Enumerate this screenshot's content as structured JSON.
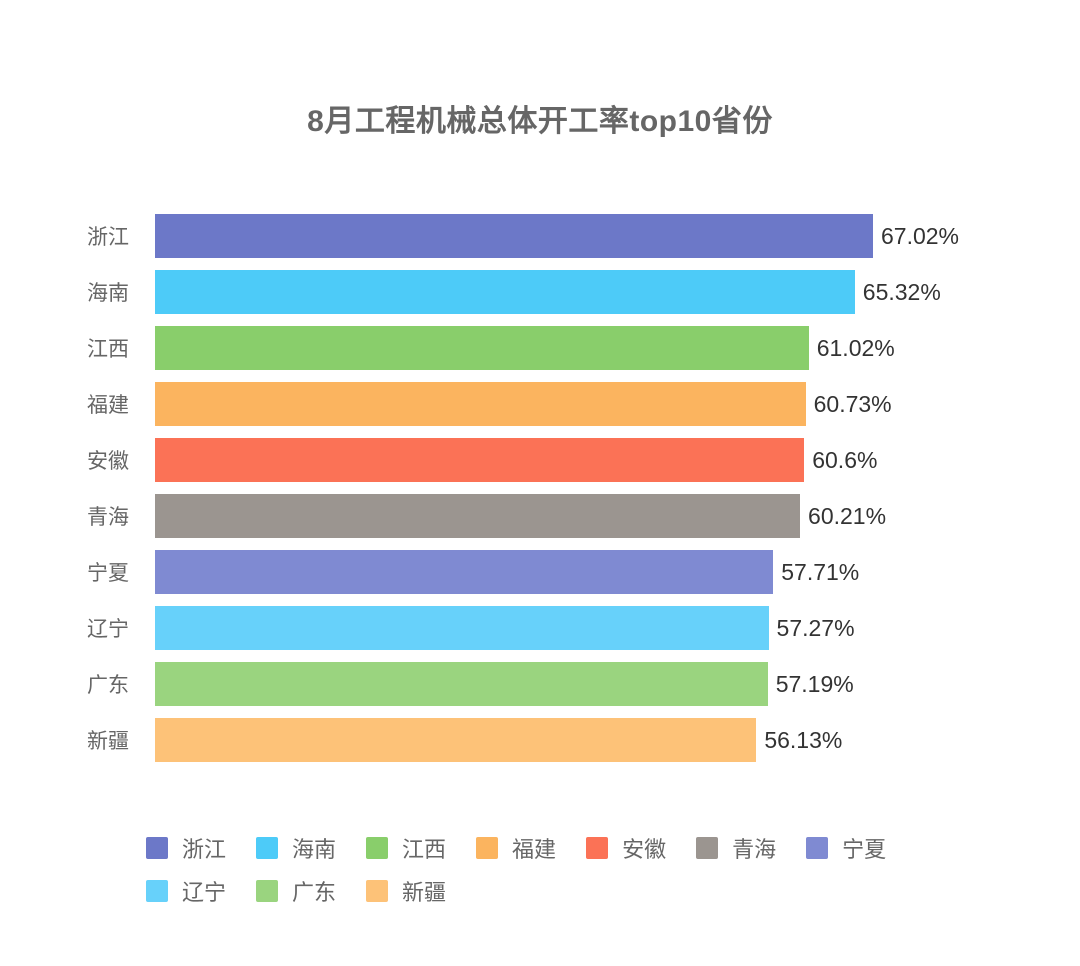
{
  "title": "8月工程机械总体开工率top10省份",
  "colors": {
    "background": "#ffffff",
    "title_text": "#666666",
    "category_text": "#666666",
    "value_text": "#333333"
  },
  "chart_data": {
    "type": "bar",
    "orientation": "horizontal",
    "title": "8月工程机械总体开工率top10省份",
    "xlabel": "",
    "ylabel": "",
    "xlim": [
      0,
      67.02
    ],
    "grid": false,
    "legend_position": "bottom",
    "categories": [
      "浙江",
      "海南",
      "江西",
      "福建",
      "安徽",
      "青海",
      "宁夏",
      "辽宁",
      "广东",
      "新疆"
    ],
    "values": [
      67.02,
      65.32,
      61.02,
      60.73,
      60.6,
      60.21,
      57.71,
      57.27,
      57.19,
      56.13
    ],
    "value_labels": [
      "67.02%",
      "65.32%",
      "61.02%",
      "60.73%",
      "60.6%",
      "60.21%",
      "57.71%",
      "57.27%",
      "57.19%",
      "56.13%"
    ],
    "bar_colors": [
      "#6C78C8",
      "#4DCBF8",
      "#89CE6B",
      "#FBB45F",
      "#FB7256",
      "#9B9590",
      "#7F8AD2",
      "#67D1FA",
      "#9AD47F",
      "#FDC278"
    ],
    "legend_entries": [
      {
        "label": "浙江",
        "color": "#6C78C8"
      },
      {
        "label": "海南",
        "color": "#4DCBF8"
      },
      {
        "label": "江西",
        "color": "#89CE6B"
      },
      {
        "label": "福建",
        "color": "#FBB45F"
      },
      {
        "label": "安徽",
        "color": "#FB7256"
      },
      {
        "label": "青海",
        "color": "#9B9590"
      },
      {
        "label": "宁夏",
        "color": "#7F8AD2"
      },
      {
        "label": "辽宁",
        "color": "#67D1FA"
      },
      {
        "label": "广东",
        "color": "#9AD47F"
      },
      {
        "label": "新疆",
        "color": "#FDC278"
      }
    ]
  }
}
